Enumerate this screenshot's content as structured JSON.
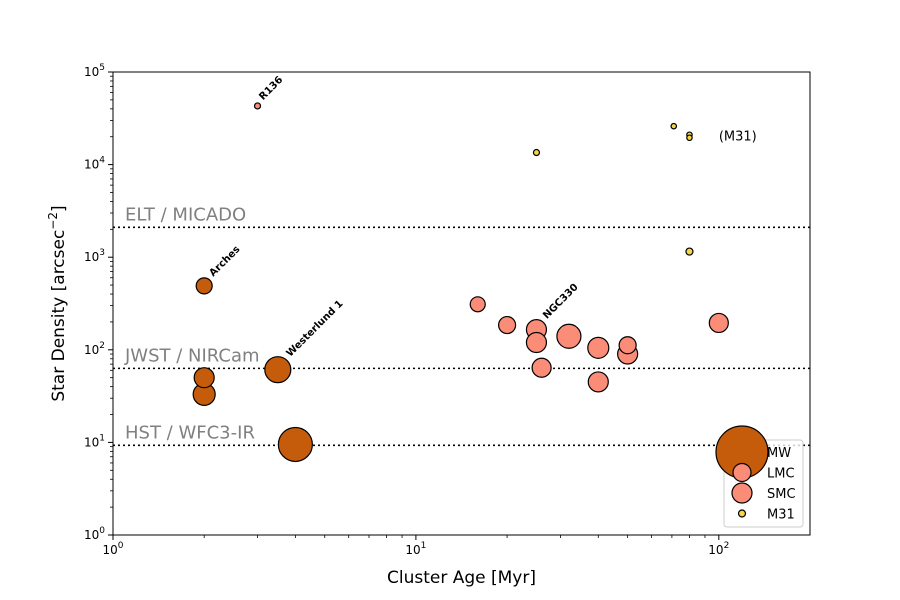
{
  "chart_data": {
    "type": "scatter",
    "title": "",
    "xlabel": "Cluster Age [Myr]",
    "ylabel_main": "Star Density [arcsec",
    "ylabel_exp": "−2",
    "ylabel_close": "]",
    "xscale": "log",
    "yscale": "log",
    "xlim": [
      1,
      200
    ],
    "ylim": [
      1,
      100000
    ],
    "x_ticks": [
      {
        "value": 1,
        "base": "10",
        "exp": "0"
      },
      {
        "value": 10,
        "base": "10",
        "exp": "1"
      },
      {
        "value": 100,
        "base": "10",
        "exp": "2"
      }
    ],
    "y_ticks": [
      {
        "value": 1,
        "base": "10",
        "exp": "0"
      },
      {
        "value": 10,
        "base": "10",
        "exp": "1"
      },
      {
        "value": 100,
        "base": "10",
        "exp": "2"
      },
      {
        "value": 1000,
        "base": "10",
        "exp": "3"
      },
      {
        "value": 10000,
        "base": "10",
        "exp": "4"
      },
      {
        "value": 100000,
        "base": "10",
        "exp": "5"
      }
    ],
    "grid": false,
    "legend_position": "bottom-right",
    "reference_lines": [
      {
        "label": "ELT / MICADO",
        "y": 2100
      },
      {
        "label": "JWST / NIRCam",
        "y": 63
      },
      {
        "label": "HST / WFC3-IR",
        "y": 9.3
      }
    ],
    "series": [
      {
        "name": "MW",
        "color": "#c45c0c",
        "points": [
          {
            "x": 2,
            "y": 490,
            "size": 8
          },
          {
            "x": 2,
            "y": 50,
            "size": 10
          },
          {
            "x": 2,
            "y": 33,
            "size": 11
          },
          {
            "x": 3.5,
            "y": 61,
            "size": 13
          },
          {
            "x": 4,
            "y": 9.5,
            "size": 17
          }
        ]
      },
      {
        "name": "LMC",
        "color": "#fa8c78",
        "points": [
          {
            "x": 3,
            "y": 43000,
            "size": 3
          },
          {
            "x": 16,
            "y": 310,
            "size": 7.5
          },
          {
            "x": 20,
            "y": 185,
            "size": 8.5
          },
          {
            "x": 25,
            "y": 165,
            "size": 10
          },
          {
            "x": 25,
            "y": 120,
            "size": 10
          },
          {
            "x": 26,
            "y": 64,
            "size": 9.5
          },
          {
            "x": 32,
            "y": 140,
            "size": 12
          },
          {
            "x": 40,
            "y": 105,
            "size": 10.5
          },
          {
            "x": 40,
            "y": 45,
            "size": 10
          },
          {
            "x": 50,
            "y": 112,
            "size": 8.5
          },
          {
            "x": 50,
            "y": 90,
            "size": 10
          },
          {
            "x": 100,
            "y": 195,
            "size": 9.5
          }
        ]
      },
      {
        "name": "SMC",
        "color": "#fa8c78",
        "points": []
      },
      {
        "name": "M31",
        "color": "#f8d545",
        "points": [
          {
            "x": 25,
            "y": 13500,
            "size": 3
          },
          {
            "x": 71,
            "y": 26000,
            "size": 2.7
          },
          {
            "x": 80,
            "y": 21000,
            "size": 2.7
          },
          {
            "x": 80,
            "y": 19500,
            "size": 2.7
          },
          {
            "x": 80,
            "y": 1150,
            "size": 3.5
          }
        ]
      }
    ],
    "annotations": [
      {
        "text": "R136",
        "x": 3,
        "y": 43000,
        "style": "bold-rotated"
      },
      {
        "text": "Arches",
        "x": 2,
        "y": 490,
        "style": "bold-rotated"
      },
      {
        "text": "Westerlund 1",
        "x": 3.5,
        "y": 61,
        "style": "bold-rotated"
      },
      {
        "text": "NGC330",
        "x": 25,
        "y": 165,
        "style": "bold-rotated"
      },
      {
        "text": "(M31)",
        "x": 100,
        "y": 20000,
        "style": "plain"
      }
    ],
    "legend": [
      {
        "name": "MW",
        "color": "#c45c0c",
        "size": 26
      },
      {
        "name": "LMC",
        "color": "#fa8c78",
        "size": 9
      },
      {
        "name": "SMC",
        "color": "#fa8c78",
        "size": 10
      },
      {
        "name": "M31",
        "color": "#f8d545",
        "size": 3.5
      }
    ]
  }
}
